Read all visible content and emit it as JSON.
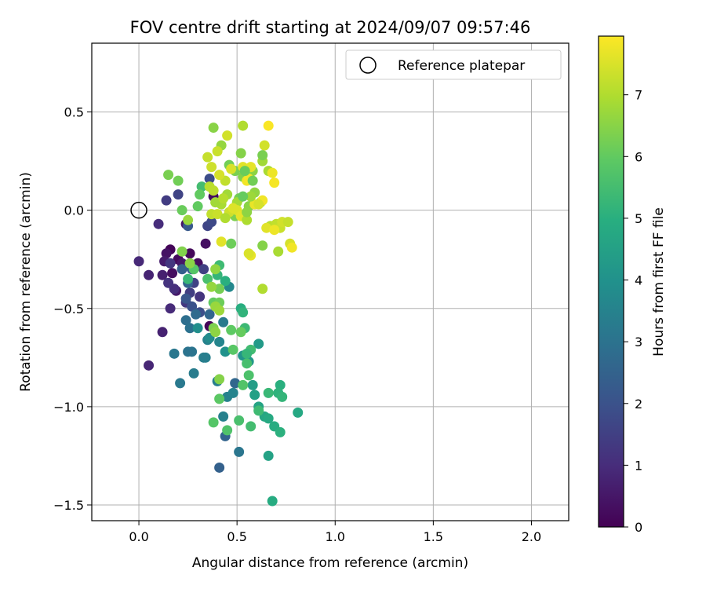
{
  "chart_data": {
    "type": "scatter",
    "title": "FOV centre drift starting at 2024/09/07 09:57:46",
    "xlabel": "Angular distance from reference (arcmin)",
    "ylabel": "Rotation from reference (arcmin)",
    "xlim": [
      -0.24,
      2.19
    ],
    "ylim": [
      -1.58,
      0.85
    ],
    "xticks": [
      0.0,
      0.5,
      1.0,
      1.5,
      2.0
    ],
    "xtick_labels": [
      "0.0",
      "0.5",
      "1.0",
      "1.5",
      "2.0"
    ],
    "yticks": [
      -1.5,
      -1.0,
      -0.5,
      0.0,
      0.5
    ],
    "ytick_labels": [
      "−1.5",
      "−1.0",
      "−0.5",
      "0.0",
      "0.5"
    ],
    "grid": true,
    "legend": {
      "position": "top-right",
      "entries": [
        "Reference platepar"
      ]
    },
    "reference_point": {
      "x": 0.0,
      "y": 0.0
    },
    "colorbar": {
      "label": "Hours from first FF file",
      "colormap": "viridis",
      "range": [
        0,
        7.95
      ],
      "ticks": [
        0,
        1,
        2,
        3,
        4,
        5,
        6,
        7
      ],
      "tick_labels": [
        "0",
        "1",
        "2",
        "3",
        "4",
        "5",
        "6",
        "7"
      ]
    },
    "points": [
      [
        0.16,
        -0.2,
        0.1
      ],
      [
        0.2,
        -0.25,
        0.2
      ],
      [
        0.17,
        -0.32,
        0.3
      ],
      [
        0.14,
        -0.22,
        0.4
      ],
      [
        0.22,
        -0.27,
        0.5
      ],
      [
        0.26,
        -0.22,
        0.15
      ],
      [
        0.3,
        -0.27,
        0.25
      ],
      [
        0.34,
        -0.17,
        0.35
      ],
      [
        0.36,
        -0.59,
        0.1
      ],
      [
        0.38,
        0.07,
        0.3
      ],
      [
        0.24,
        -0.07,
        0.45
      ],
      [
        0.13,
        -0.26,
        0.6
      ],
      [
        0.19,
        -0.41,
        0.55
      ],
      [
        0.12,
        -0.33,
        0.7
      ],
      [
        0.05,
        -0.33,
        0.8
      ],
      [
        0.0,
        -0.26,
        0.9
      ],
      [
        0.1,
        -0.07,
        1.0
      ],
      [
        0.12,
        -0.62,
        0.75
      ],
      [
        0.05,
        -0.79,
        0.85
      ],
      [
        0.16,
        -0.5,
        0.95
      ],
      [
        0.18,
        -0.4,
        1.05
      ],
      [
        0.15,
        -0.37,
        1.15
      ],
      [
        0.16,
        -0.27,
        1.25
      ],
      [
        0.14,
        0.05,
        1.4
      ],
      [
        0.2,
        0.08,
        1.6
      ],
      [
        0.24,
        -0.47,
        1.3
      ],
      [
        0.26,
        -0.42,
        1.45
      ],
      [
        0.28,
        -0.37,
        1.55
      ],
      [
        0.31,
        -0.44,
        1.2
      ],
      [
        0.33,
        -0.3,
        1.5
      ],
      [
        0.35,
        -0.08,
        1.65
      ],
      [
        0.37,
        -0.06,
        1.75
      ],
      [
        0.36,
        0.16,
        1.85
      ],
      [
        0.31,
        -0.52,
        1.9
      ],
      [
        0.27,
        -0.49,
        2.0
      ],
      [
        0.24,
        -0.45,
        2.1
      ],
      [
        0.25,
        -0.08,
        2.2
      ],
      [
        0.27,
        -0.3,
        2.3
      ],
      [
        0.22,
        -0.3,
        2.4
      ],
      [
        0.25,
        -0.37,
        2.5
      ],
      [
        0.36,
        -0.53,
        2.6
      ],
      [
        0.29,
        -0.53,
        2.75
      ],
      [
        0.24,
        -0.56,
        2.85
      ],
      [
        0.26,
        -0.6,
        2.95
      ],
      [
        0.27,
        -0.72,
        3.05
      ],
      [
        0.18,
        -0.73,
        3.15
      ],
      [
        0.21,
        -0.88,
        3.2
      ],
      [
        0.28,
        -0.83,
        3.3
      ],
      [
        0.34,
        -0.75,
        3.4
      ],
      [
        0.35,
        -0.66,
        3.5
      ],
      [
        0.41,
        -0.67,
        3.6
      ],
      [
        0.46,
        -0.39,
        3.7
      ],
      [
        0.43,
        -0.57,
        3.25
      ],
      [
        0.4,
        -0.87,
        3.35
      ],
      [
        0.45,
        -0.95,
        3.45
      ],
      [
        0.48,
        -0.93,
        3.55
      ],
      [
        0.49,
        -0.88,
        2.65
      ],
      [
        0.44,
        -1.15,
        2.55
      ],
      [
        0.41,
        -1.31,
        2.45
      ],
      [
        0.51,
        -1.23,
        3.1
      ],
      [
        0.36,
        -0.65,
        3.8
      ],
      [
        0.3,
        -0.6,
        3.9
      ],
      [
        0.25,
        -0.72,
        3.0
      ],
      [
        0.33,
        -0.75,
        3.35
      ],
      [
        0.43,
        -1.05,
        3.45
      ],
      [
        0.44,
        -0.72,
        4.0
      ],
      [
        0.53,
        -0.74,
        4.1
      ],
      [
        0.56,
        -0.77,
        4.2
      ],
      [
        0.61,
        -0.68,
        4.3
      ],
      [
        0.58,
        -0.89,
        4.4
      ],
      [
        0.59,
        -0.94,
        4.5
      ],
      [
        0.61,
        -1.0,
        4.6
      ],
      [
        0.64,
        -1.05,
        4.7
      ],
      [
        0.66,
        -1.06,
        4.8
      ],
      [
        0.69,
        -1.1,
        4.9
      ],
      [
        0.72,
        -0.89,
        5.0
      ],
      [
        0.71,
        -0.93,
        5.1
      ],
      [
        0.73,
        -0.95,
        5.2
      ],
      [
        0.66,
        -0.93,
        5.3
      ],
      [
        0.61,
        -1.02,
        5.4
      ],
      [
        0.57,
        -1.1,
        5.5
      ],
      [
        0.51,
        -1.07,
        5.6
      ],
      [
        0.45,
        -1.12,
        5.7
      ],
      [
        0.38,
        -1.08,
        5.8
      ],
      [
        0.41,
        -0.96,
        5.9
      ],
      [
        0.52,
        -0.5,
        4.95
      ],
      [
        0.53,
        -0.52,
        5.15
      ],
      [
        0.54,
        -0.6,
        5.35
      ],
      [
        0.57,
        -0.71,
        5.45
      ],
      [
        0.55,
        -0.78,
        5.55
      ],
      [
        0.56,
        -0.84,
        5.65
      ],
      [
        0.53,
        -0.89,
        5.75
      ],
      [
        0.48,
        -0.71,
        5.85
      ],
      [
        0.47,
        -0.61,
        5.95
      ],
      [
        0.52,
        -0.62,
        6.05
      ],
      [
        0.55,
        -0.73,
        5.25
      ],
      [
        0.68,
        -1.48,
        4.85
      ],
      [
        0.66,
        -1.25,
        4.55
      ],
      [
        0.72,
        -1.13,
        5.05
      ],
      [
        0.81,
        -1.03,
        4.75
      ],
      [
        0.44,
        -0.36,
        5.0
      ],
      [
        0.4,
        -0.33,
        5.2
      ],
      [
        0.41,
        -0.28,
        5.4
      ],
      [
        0.35,
        -0.35,
        5.6
      ],
      [
        0.25,
        -0.35,
        5.3
      ],
      [
        0.28,
        -0.3,
        5.8
      ],
      [
        0.32,
        0.12,
        5.5
      ],
      [
        0.3,
        0.02,
        6.0
      ],
      [
        0.22,
        0.0,
        6.1
      ],
      [
        0.2,
        0.15,
        6.2
      ],
      [
        0.15,
        0.18,
        6.3
      ],
      [
        0.22,
        -0.21,
        6.4
      ],
      [
        0.26,
        -0.27,
        6.5
      ],
      [
        0.38,
        -0.47,
        6.0
      ],
      [
        0.41,
        -0.47,
        6.15
      ],
      [
        0.41,
        -0.4,
        6.25
      ],
      [
        0.38,
        -0.6,
        6.35
      ],
      [
        0.41,
        -0.86,
        6.45
      ],
      [
        0.39,
        -0.62,
        6.55
      ],
      [
        0.37,
        -0.39,
        6.65
      ],
      [
        0.39,
        -0.3,
        6.6
      ],
      [
        0.39,
        -0.49,
        6.7
      ],
      [
        0.41,
        -0.51,
        6.75
      ],
      [
        0.46,
        0.23,
        6.2
      ],
      [
        0.49,
        0.2,
        6.3
      ],
      [
        0.53,
        0.17,
        6.4
      ],
      [
        0.56,
        0.02,
        6.5
      ],
      [
        0.58,
        0.2,
        6.55
      ],
      [
        0.59,
        0.09,
        6.6
      ],
      [
        0.62,
        0.04,
        6.7
      ],
      [
        0.63,
        0.25,
        6.8
      ],
      [
        0.66,
        0.2,
        6.9
      ],
      [
        0.63,
        -0.18,
        6.45
      ],
      [
        0.49,
        -0.03,
        6.35
      ],
      [
        0.51,
        0.06,
        6.25
      ],
      [
        0.47,
        -0.17,
        6.15
      ],
      [
        0.38,
        0.42,
        6.5
      ],
      [
        0.42,
        0.33,
        6.65
      ],
      [
        0.45,
        0.08,
        6.8
      ],
      [
        0.5,
        0.04,
        6.85
      ],
      [
        0.53,
        0.43,
        7.0
      ],
      [
        0.36,
        0.12,
        7.1
      ],
      [
        0.38,
        0.1,
        7.15
      ],
      [
        0.44,
        0.15,
        7.2
      ],
      [
        0.4,
        0.3,
        7.3
      ],
      [
        0.45,
        0.38,
        7.4
      ],
      [
        0.35,
        0.27,
        7.25
      ],
      [
        0.37,
        0.22,
        7.35
      ],
      [
        0.41,
        0.18,
        7.45
      ],
      [
        0.47,
        0.21,
        7.5
      ],
      [
        0.5,
        0.0,
        7.55
      ],
      [
        0.53,
        0.22,
        7.6
      ],
      [
        0.57,
        0.22,
        7.65
      ],
      [
        0.59,
        0.03,
        7.7
      ],
      [
        0.64,
        0.33,
        7.4
      ],
      [
        0.66,
        0.43,
        7.9
      ],
      [
        0.68,
        0.19,
        7.75
      ],
      [
        0.69,
        0.14,
        7.85
      ],
      [
        0.63,
        0.05,
        7.8
      ],
      [
        0.61,
        0.03,
        7.45
      ],
      [
        0.57,
        -0.23,
        7.7
      ],
      [
        0.56,
        -0.22,
        7.5
      ],
      [
        0.42,
        -0.16,
        7.6
      ],
      [
        0.37,
        -0.02,
        7.2
      ],
      [
        0.4,
        -0.02,
        7.3
      ],
      [
        0.46,
        -0.01,
        7.35
      ],
      [
        0.48,
        0.01,
        7.55
      ],
      [
        0.52,
        -0.03,
        7.65
      ],
      [
        0.55,
        0.15,
        7.8
      ],
      [
        0.56,
        0.16,
        7.85
      ],
      [
        0.63,
        -0.4,
        7.0
      ],
      [
        0.67,
        -0.08,
        7.1
      ],
      [
        0.7,
        -0.07,
        7.2
      ],
      [
        0.72,
        -0.09,
        7.3
      ],
      [
        0.73,
        -0.06,
        7.4
      ],
      [
        0.76,
        -0.06,
        7.25
      ],
      [
        0.77,
        -0.17,
        7.45
      ],
      [
        0.78,
        -0.19,
        7.8
      ],
      [
        0.71,
        -0.21,
        6.9
      ],
      [
        0.65,
        -0.09,
        7.6
      ],
      [
        0.69,
        -0.1,
        7.75
      ],
      [
        0.55,
        -0.05,
        6.95
      ],
      [
        0.57,
        0.07,
        6.75
      ],
      [
        0.53,
        0.07,
        6.05
      ],
      [
        0.55,
        -0.01,
        6.55
      ],
      [
        0.63,
        0.28,
        6.3
      ],
      [
        0.58,
        0.15,
        6.2
      ],
      [
        0.54,
        0.2,
        6.1
      ],
      [
        0.42,
        0.03,
        6.9
      ],
      [
        0.44,
        -0.04,
        7.0
      ],
      [
        0.52,
        0.29,
        6.45
      ],
      [
        0.31,
        0.08,
        6.0
      ],
      [
        0.25,
        -0.05,
        6.7
      ],
      [
        0.39,
        0.04,
        6.8
      ],
      [
        0.43,
        0.06,
        7.05
      ]
    ]
  }
}
